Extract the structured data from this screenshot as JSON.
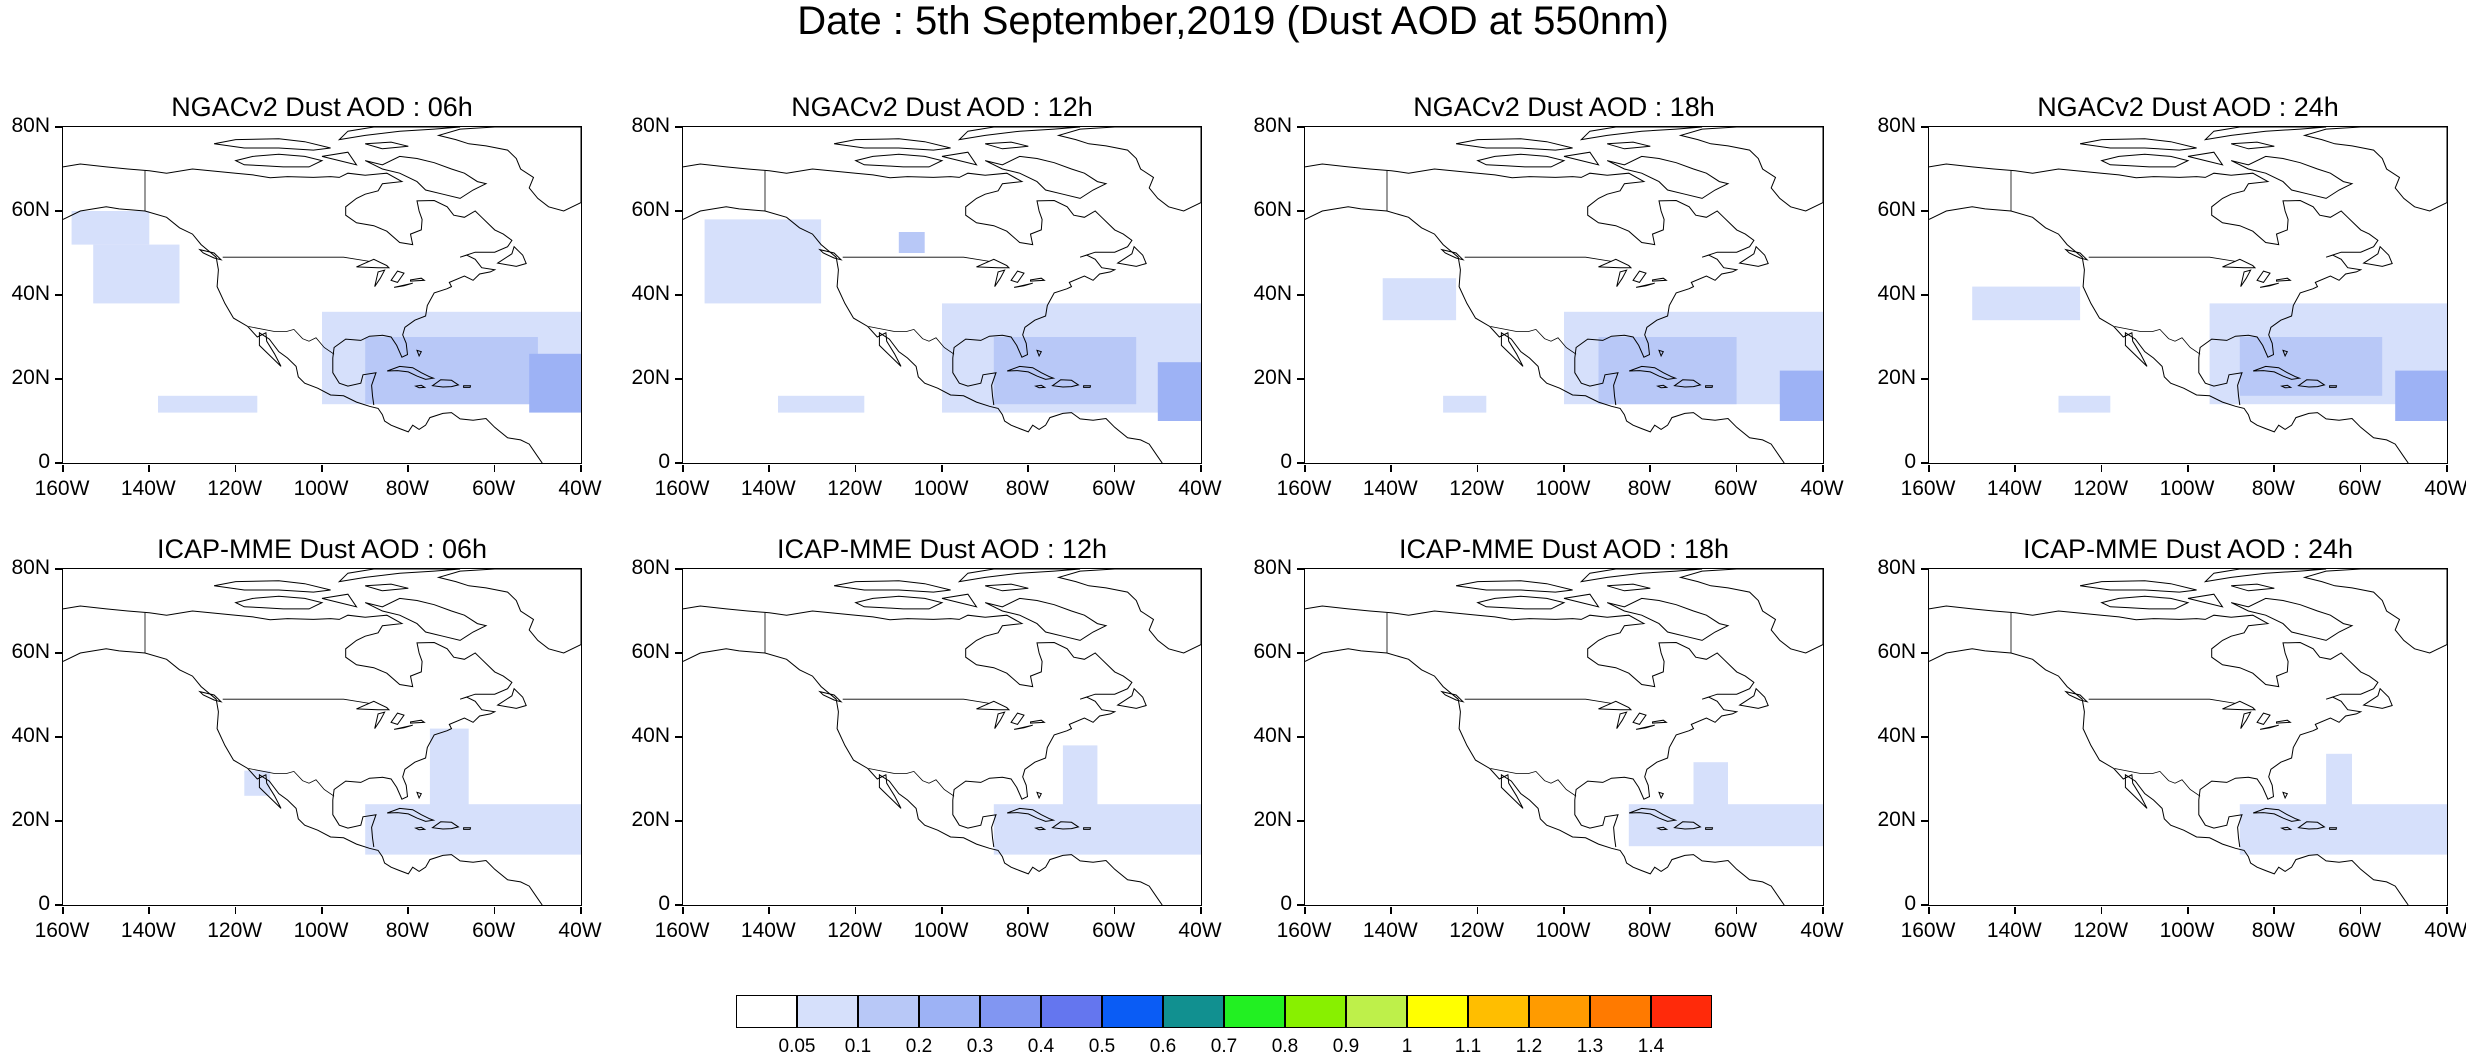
{
  "title": "Date : 5th September,2019 (Dust AOD at 550nm)",
  "axes": {
    "lat_ticks": [
      "80N",
      "60N",
      "40N",
      "20N",
      "0"
    ],
    "lon_ticks": [
      "160W",
      "140W",
      "120W",
      "100W",
      "80W",
      "60W",
      "40W"
    ],
    "lat_range": [
      0,
      80
    ],
    "lon_range": [
      -160,
      -40
    ]
  },
  "panels": [
    {
      "title": "NGACv2 Dust AOD : 06h",
      "model": "NGACv2",
      "hour": "06h"
    },
    {
      "title": "NGACv2 Dust AOD : 12h",
      "model": "NGACv2",
      "hour": "12h"
    },
    {
      "title": "NGACv2 Dust AOD : 18h",
      "model": "NGACv2",
      "hour": "18h"
    },
    {
      "title": "NGACv2 Dust AOD : 24h",
      "model": "NGACv2",
      "hour": "24h"
    },
    {
      "title": "ICAP-MME Dust AOD : 06h",
      "model": "ICAP-MME",
      "hour": "06h"
    },
    {
      "title": "ICAP-MME Dust AOD : 12h",
      "model": "ICAP-MME",
      "hour": "12h"
    },
    {
      "title": "ICAP-MME Dust AOD : 18h",
      "model": "ICAP-MME",
      "hour": "18h"
    },
    {
      "title": "ICAP-MME Dust AOD : 24h",
      "model": "ICAP-MME",
      "hour": "24h"
    }
  ],
  "colorbar": {
    "labels": [
      "0.05",
      "0.1",
      "0.2",
      "0.3",
      "0.4",
      "0.5",
      "0.6",
      "0.7",
      "0.8",
      "0.9",
      "1",
      "1.1",
      "1.2",
      "1.3",
      "1.4"
    ],
    "colors": [
      "#ffffff",
      "#d6e0fb",
      "#b8c8f7",
      "#9db2f5",
      "#8196f2",
      "#6476ef",
      "#0a5cf5",
      "#119090",
      "#22f022",
      "#88f000",
      "#bef04a",
      "#ffff00",
      "#ffbe00",
      "#ff9b00",
      "#ff7a00",
      "#ff2a0a"
    ]
  },
  "chart_data": {
    "type": "heatmap",
    "variable": "Dust AOD at 550nm",
    "date": "5th September,2019",
    "x_range": [
      -160,
      -40
    ],
    "y_range": [
      0,
      80
    ],
    "bins": [
      0.05,
      0.1,
      0.2,
      0.3,
      0.4,
      0.5,
      0.6,
      0.7,
      0.8,
      0.9,
      1,
      1.1,
      1.2,
      1.3,
      1.4
    ],
    "fields": [
      {
        "panel": "NGACv2 Dust AOD : 06h",
        "patches": [
          {
            "lon": [
              -158,
              -140
            ],
            "lat": [
              52,
              60
            ],
            "level": 1
          },
          {
            "lon": [
              -153,
              -133
            ],
            "lat": [
              38,
              52
            ],
            "level": 1
          },
          {
            "lon": [
              -100,
              -40
            ],
            "lat": [
              14,
              36
            ],
            "level": 1
          },
          {
            "lon": [
              -90,
              -50
            ],
            "lat": [
              14,
              30
            ],
            "level": 2
          },
          {
            "lon": [
              -52,
              -40
            ],
            "lat": [
              12,
              26
            ],
            "level": 3
          },
          {
            "lon": [
              -138,
              -115
            ],
            "lat": [
              12,
              16
            ],
            "level": 1
          }
        ]
      },
      {
        "panel": "NGACv2 Dust AOD : 12h",
        "patches": [
          {
            "lon": [
              -155,
              -128
            ],
            "lat": [
              38,
              58
            ],
            "level": 1
          },
          {
            "lon": [
              -110,
              -104
            ],
            "lat": [
              50,
              55
            ],
            "level": 2
          },
          {
            "lon": [
              -100,
              -40
            ],
            "lat": [
              12,
              38
            ],
            "level": 1
          },
          {
            "lon": [
              -88,
              -55
            ],
            "lat": [
              14,
              30
            ],
            "level": 2
          },
          {
            "lon": [
              -50,
              -40
            ],
            "lat": [
              10,
              24
            ],
            "level": 3
          },
          {
            "lon": [
              -138,
              -118
            ],
            "lat": [
              12,
              16
            ],
            "level": 1
          }
        ]
      },
      {
        "panel": "NGACv2 Dust AOD : 18h",
        "patches": [
          {
            "lon": [
              -142,
              -125
            ],
            "lat": [
              34,
              44
            ],
            "level": 1
          },
          {
            "lon": [
              -100,
              -40
            ],
            "lat": [
              14,
              36
            ],
            "level": 1
          },
          {
            "lon": [
              -92,
              -60
            ],
            "lat": [
              14,
              30
            ],
            "level": 2
          },
          {
            "lon": [
              -50,
              -40
            ],
            "lat": [
              10,
              22
            ],
            "level": 3
          },
          {
            "lon": [
              -128,
              -118
            ],
            "lat": [
              12,
              16
            ],
            "level": 1
          }
        ]
      },
      {
        "panel": "NGACv2 Dust AOD : 24h",
        "patches": [
          {
            "lon": [
              -150,
              -125
            ],
            "lat": [
              34,
              42
            ],
            "level": 1
          },
          {
            "lon": [
              -95,
              -40
            ],
            "lat": [
              14,
              38
            ],
            "level": 1
          },
          {
            "lon": [
              -88,
              -55
            ],
            "lat": [
              16,
              30
            ],
            "level": 2
          },
          {
            "lon": [
              -52,
              -40
            ],
            "lat": [
              10,
              22
            ],
            "level": 3
          },
          {
            "lon": [
              -130,
              -118
            ],
            "lat": [
              12,
              16
            ],
            "level": 1
          }
        ]
      },
      {
        "panel": "ICAP-MME Dust AOD : 06h",
        "patches": [
          {
            "lon": [
              -75,
              -66
            ],
            "lat": [
              20,
              42
            ],
            "level": 1
          },
          {
            "lon": [
              -90,
              -40
            ],
            "lat": [
              12,
              24
            ],
            "level": 1
          },
          {
            "lon": [
              -118,
              -112
            ],
            "lat": [
              26,
              32
            ],
            "level": 1
          }
        ]
      },
      {
        "panel": "ICAP-MME Dust AOD : 12h",
        "patches": [
          {
            "lon": [
              -72,
              -64
            ],
            "lat": [
              22,
              38
            ],
            "level": 1
          },
          {
            "lon": [
              -88,
              -40
            ],
            "lat": [
              12,
              24
            ],
            "level": 1
          }
        ]
      },
      {
        "panel": "ICAP-MME Dust AOD : 18h",
        "patches": [
          {
            "lon": [
              -70,
              -62
            ],
            "lat": [
              22,
              34
            ],
            "level": 1
          },
          {
            "lon": [
              -85,
              -40
            ],
            "lat": [
              14,
              24
            ],
            "level": 1
          }
        ]
      },
      {
        "panel": "ICAP-MME Dust AOD : 24h",
        "patches": [
          {
            "lon": [
              -68,
              -62
            ],
            "lat": [
              22,
              36
            ],
            "level": 1
          },
          {
            "lon": [
              -88,
              -40
            ],
            "lat": [
              12,
              24
            ],
            "level": 1
          }
        ]
      }
    ]
  }
}
